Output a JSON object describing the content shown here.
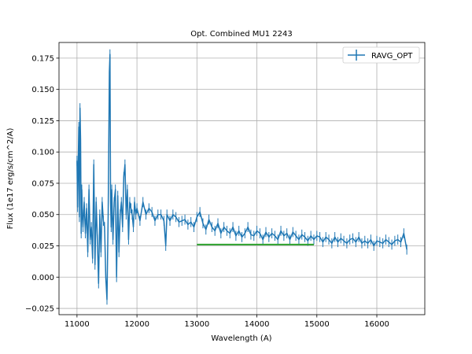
{
  "chart_data": {
    "type": "line",
    "title": "Opt. Combined MU1 2243",
    "xlabel": "Wavelength (A)",
    "ylabel": "Flux (1e17 erg/s/cm^2/A)",
    "xlim": [
      10700,
      16800
    ],
    "ylim": [
      -0.03,
      0.1875
    ],
    "xticks": [
      11000,
      12000,
      13000,
      14000,
      15000,
      16000
    ],
    "xtick_labels": [
      "11000",
      "12000",
      "13000",
      "14000",
      "15000",
      "16000"
    ],
    "yticks": [
      -0.025,
      0.0,
      0.025,
      0.05,
      0.075,
      0.1,
      0.125,
      0.15,
      0.175
    ],
    "ytick_labels": [
      "−0.025",
      "0.000",
      "0.025",
      "0.050",
      "0.075",
      "0.100",
      "0.125",
      "0.150",
      "0.175"
    ],
    "grid": true,
    "legend": {
      "position": "top-right",
      "entries": [
        "RAVG_OPT"
      ]
    },
    "colors": {
      "series": "#1f77b4",
      "continuum": "#2ca02c"
    },
    "series": [
      {
        "name": "RAVG_OPT",
        "style": "line-with-errorbars",
        "x": [
          11000,
          11010,
          11020,
          11030,
          11040,
          11050,
          11060,
          11070,
          11080,
          11090,
          11100,
          11120,
          11140,
          11160,
          11180,
          11200,
          11220,
          11240,
          11260,
          11280,
          11300,
          11320,
          11340,
          11360,
          11380,
          11400,
          11420,
          11440,
          11460,
          11480,
          11500,
          11520,
          11540,
          11550,
          11560,
          11570,
          11580,
          11600,
          11620,
          11640,
          11660,
          11680,
          11700,
          11720,
          11740,
          11760,
          11780,
          11800,
          11820,
          11840,
          11860,
          11880,
          11900,
          11920,
          11940,
          11960,
          11980,
          12000,
          12050,
          12100,
          12150,
          12200,
          12250,
          12300,
          12350,
          12400,
          12450,
          12480,
          12500,
          12550,
          12600,
          12650,
          12700,
          12750,
          12800,
          12850,
          12900,
          12950,
          13000,
          13050,
          13100,
          13150,
          13200,
          13250,
          13300,
          13350,
          13400,
          13450,
          13500,
          13550,
          13600,
          13650,
          13700,
          13750,
          13800,
          13850,
          13900,
          13950,
          14000,
          14050,
          14100,
          14150,
          14200,
          14250,
          14300,
          14350,
          14400,
          14450,
          14500,
          14550,
          14600,
          14650,
          14700,
          14750,
          14800,
          14850,
          14900,
          14950,
          15000,
          15050,
          15100,
          15150,
          15200,
          15250,
          15300,
          15350,
          15400,
          15450,
          15500,
          15550,
          15600,
          15650,
          15700,
          15750,
          15800,
          15850,
          15900,
          15950,
          16000,
          16050,
          16100,
          16150,
          16200,
          16250,
          16300,
          16350,
          16400,
          16450,
          16500
        ],
        "y": [
          0.093,
          0.056,
          0.09,
          0.12,
          0.048,
          0.135,
          0.11,
          0.035,
          0.07,
          0.05,
          0.04,
          0.06,
          0.035,
          0.055,
          0.02,
          0.07,
          0.03,
          0.04,
          0.015,
          0.09,
          0.01,
          0.06,
          0.03,
          -0.005,
          0.05,
          0.02,
          0.06,
          0.045,
          0.04,
          0.0,
          -0.018,
          0.05,
          0.164,
          0.178,
          0.06,
          0.04,
          0.07,
          0.03,
          0.06,
          0.07,
          0.0,
          0.065,
          0.02,
          0.05,
          0.06,
          0.04,
          0.08,
          0.09,
          0.05,
          0.07,
          0.03,
          0.06,
          0.055,
          0.05,
          0.04,
          0.06,
          0.05,
          0.055,
          0.045,
          0.06,
          0.05,
          0.055,
          0.052,
          0.045,
          0.05,
          0.05,
          0.045,
          0.025,
          0.05,
          0.045,
          0.05,
          0.048,
          0.044,
          0.045,
          0.046,
          0.042,
          0.044,
          0.04,
          0.048,
          0.052,
          0.043,
          0.038,
          0.046,
          0.04,
          0.037,
          0.043,
          0.035,
          0.04,
          0.037,
          0.035,
          0.04,
          0.033,
          0.037,
          0.032,
          0.035,
          0.04,
          0.034,
          0.033,
          0.037,
          0.035,
          0.03,
          0.036,
          0.032,
          0.035,
          0.033,
          0.03,
          0.037,
          0.033,
          0.035,
          0.03,
          0.036,
          0.033,
          0.03,
          0.034,
          0.032,
          0.029,
          0.033,
          0.03,
          0.033,
          0.032,
          0.028,
          0.032,
          0.03,
          0.027,
          0.032,
          0.028,
          0.031,
          0.029,
          0.027,
          0.03,
          0.031,
          0.028,
          0.032,
          0.027,
          0.029,
          0.027,
          0.03,
          0.025,
          0.029,
          0.028,
          0.027,
          0.03,
          0.028,
          0.026,
          0.029,
          0.03,
          0.028,
          0.035,
          0.022
        ],
        "yerr": 0.004
      },
      {
        "x": [
          13000,
          14950
        ],
        "y": [
          0.026,
          0.026
        ]
      }
    ]
  }
}
